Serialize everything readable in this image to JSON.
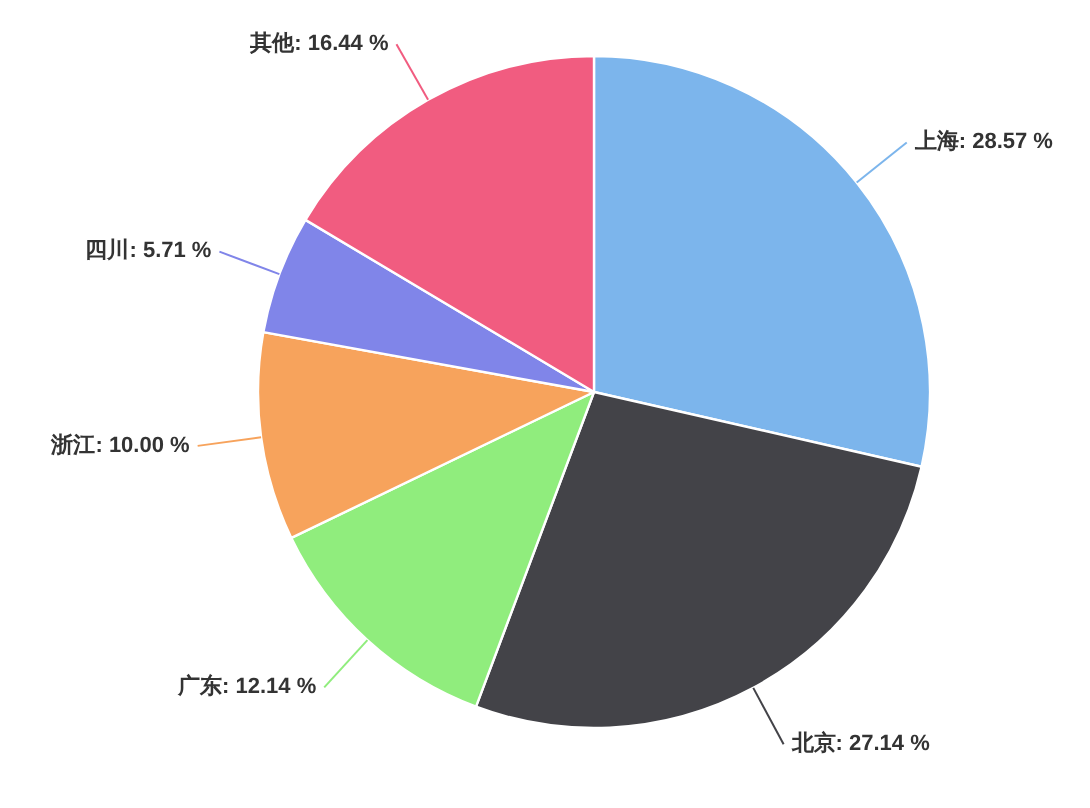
{
  "chart_data": {
    "type": "pie",
    "categories": [
      "上海",
      "北京",
      "广东",
      "浙江",
      "四川",
      "其他"
    ],
    "values": [
      28.57,
      27.14,
      12.14,
      10.0,
      5.71,
      16.44
    ],
    "colors": [
      "#7cb5ec",
      "#434348",
      "#90ed7d",
      "#f7a35c",
      "#8085e9",
      "#f15c80"
    ],
    "value_labels": [
      "28.57 %",
      "27.14 %",
      "12.14 %",
      "10.00 %",
      "5.71 %",
      "16.44 %"
    ]
  }
}
